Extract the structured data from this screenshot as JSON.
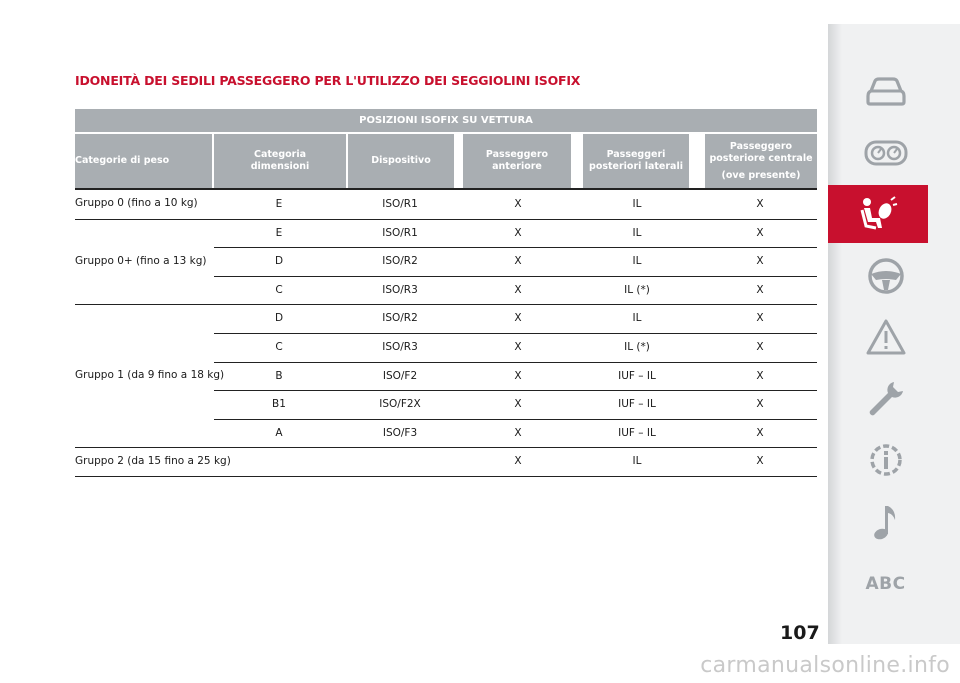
{
  "title": "IDONEITÀ DEI SEDILI PASSEGGERO PER L'UTILIZZO DEI SEGGIOLINI ISOFIX",
  "table": {
    "super_header": "POSIZIONI ISOFIX SU VETTURA",
    "headers": {
      "weight": "Categorie di peso",
      "size_line1": "Categoria",
      "size_line2": "dimensioni",
      "device": "Dispositivo",
      "front_line1": "Passeggero",
      "front_line2": "anteriore",
      "rear_side_line1": "Passeggeri",
      "rear_side_line2": "posteriori laterali",
      "rear_center_line1": "Passeggero",
      "rear_center_line2": "posteriore centrale",
      "rear_center_line3": "(ove presente)"
    },
    "groups": [
      {
        "label": "Gruppo 0 (fino a 10 kg)",
        "rows": [
          {
            "size": "E",
            "device": "ISO/R1",
            "front": "X",
            "rear_side": "IL",
            "rear_center": "X"
          }
        ]
      },
      {
        "label": "Gruppo 0+ (fino a 13 kg)",
        "rows": [
          {
            "size": "E",
            "device": "ISO/R1",
            "front": "X",
            "rear_side": "IL",
            "rear_center": "X"
          },
          {
            "size": "D",
            "device": "ISO/R2",
            "front": "X",
            "rear_side": "IL",
            "rear_center": "X"
          },
          {
            "size": "C",
            "device": "ISO/R3",
            "front": "X",
            "rear_side": "IL (*)",
            "rear_center": "X"
          }
        ]
      },
      {
        "label": "Gruppo 1 (da 9 fino a 18 kg)",
        "rows": [
          {
            "size": "D",
            "device": "ISO/R2",
            "front": "X",
            "rear_side": "IL",
            "rear_center": "X"
          },
          {
            "size": "C",
            "device": "ISO/R3",
            "front": "X",
            "rear_side": "IL (*)",
            "rear_center": "X"
          },
          {
            "size": "B",
            "device": "ISO/F2",
            "front": "X",
            "rear_side": "IUF – IL",
            "rear_center": "X"
          },
          {
            "size": "B1",
            "device": "ISO/F2X",
            "front": "X",
            "rear_side": "IUF – IL",
            "rear_center": "X"
          },
          {
            "size": "A",
            "device": "ISO/F3",
            "front": "X",
            "rear_side": "IUF – IL",
            "rear_center": "X"
          }
        ]
      },
      {
        "label": "Gruppo 2 (da 15 fino a 25 kg)",
        "rows": [
          {
            "size": "",
            "device": "",
            "front": "X",
            "rear_side": "IL",
            "rear_center": "X"
          }
        ]
      }
    ]
  },
  "sidebar": {
    "items": [
      {
        "icon": "car-icon"
      },
      {
        "icon": "dashboard-icon"
      },
      {
        "icon": "airbag-seat-icon",
        "active": true
      },
      {
        "icon": "steering-wheel-icon"
      },
      {
        "icon": "warning-triangle-icon"
      },
      {
        "icon": "wrench-icon"
      },
      {
        "icon": "technical-data-icon"
      },
      {
        "icon": "music-note-icon"
      }
    ],
    "abc_label": "ABC",
    "active_color": "#c8102e"
  },
  "page_number": "107",
  "watermark": "carmanualsonline.info"
}
